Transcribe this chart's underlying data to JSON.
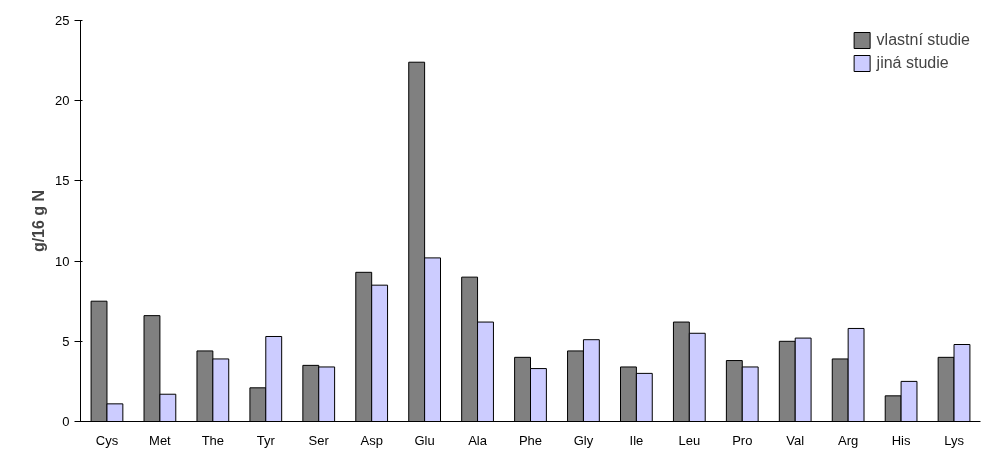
{
  "chart_data": {
    "type": "bar",
    "ylabel": "g/16 g N",
    "categories": [
      "Cys",
      "Met",
      "The",
      "Tyr",
      "Ser",
      "Asp",
      "Glu",
      "Ala",
      "Phe",
      "Gly",
      "Ile",
      "Leu",
      "Pro",
      "Val",
      "Arg",
      "His",
      "Lys"
    ],
    "series": [
      {
        "name": "vlastní studie",
        "color": "#808080",
        "values": [
          7.5,
          6.6,
          4.4,
          2.1,
          3.5,
          9.3,
          22.4,
          9.0,
          4.0,
          4.4,
          3.4,
          6.2,
          3.8,
          5.0,
          3.9,
          1.6,
          4.0
        ]
      },
      {
        "name": "jiná studie",
        "color": "#ccccff",
        "values": [
          1.1,
          1.7,
          3.9,
          5.3,
          3.4,
          8.5,
          10.2,
          6.2,
          3.3,
          5.1,
          3.0,
          5.5,
          3.4,
          5.2,
          5.8,
          2.5,
          4.8
        ]
      }
    ],
    "ylim": [
      0,
      25
    ],
    "yticks": [
      0,
      5,
      10,
      15,
      20,
      25
    ],
    "grid": false,
    "legend": "top right"
  }
}
